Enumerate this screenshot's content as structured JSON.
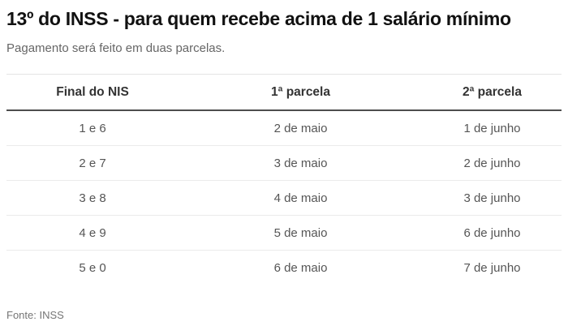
{
  "header": {
    "title": "13º do INSS - para quem recebe acima de 1 salário mínimo",
    "subtitle": "Pagamento será feito em duas parcelas."
  },
  "table": {
    "columns": [
      "Final do NIS",
      "1ª parcela",
      "2ª parcela"
    ],
    "rows": [
      [
        "1 e 6",
        "2 de maio",
        "1 de junho"
      ],
      [
        "2 e 7",
        "3 de maio",
        "2 de junho"
      ],
      [
        "3 e 8",
        "4 de maio",
        "3 de junho"
      ],
      [
        "4 e 9",
        "5 de maio",
        "6 de junho"
      ],
      [
        "5 e 0",
        "6 de maio",
        "7 de junho"
      ]
    ]
  },
  "footer": {
    "source": "Fonte: INSS"
  },
  "colors": {
    "title_text": "#111111",
    "subtitle_text": "#666666",
    "header_text": "#333333",
    "cell_text": "#555555",
    "header_rule": "#4d4d4d",
    "row_separator": "#ebebeb",
    "table_top_rule": "#e4e4e4",
    "source_text": "#757575",
    "background": "#ffffff"
  },
  "chart_data": {
    "type": "table",
    "title": "13º do INSS - para quem recebe acima de 1 salário mínimo",
    "subtitle": "Pagamento será feito em duas parcelas.",
    "columns": [
      "Final do NIS",
      "1ª parcela",
      "2ª parcela"
    ],
    "rows": [
      [
        "1 e 6",
        "2 de maio",
        "1 de junho"
      ],
      [
        "2 e 7",
        "3 de maio",
        "2 de junho"
      ],
      [
        "3 e 8",
        "4 de maio",
        "3 de junho"
      ],
      [
        "4 e 9",
        "5 de maio",
        "6 de junho"
      ],
      [
        "5 e 0",
        "6 de maio",
        "7 de junho"
      ]
    ],
    "source": "Fonte: INSS",
    "layout": {
      "grid": "off",
      "cell_alignment": "center",
      "row_separators": true
    }
  }
}
